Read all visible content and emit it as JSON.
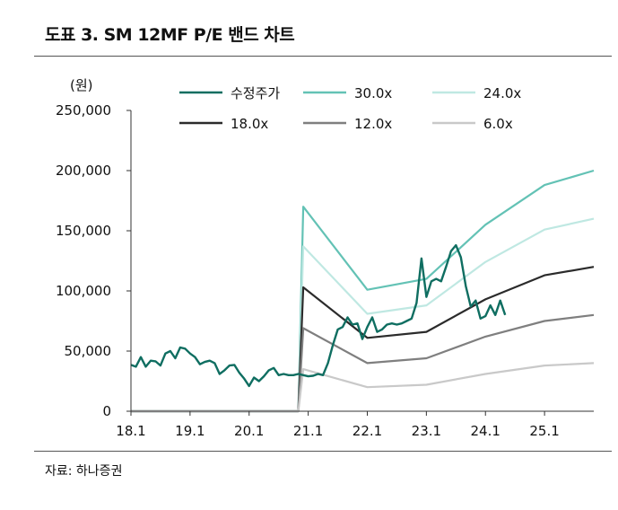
{
  "header": {
    "title": "도표 3. SM 12MF P/E 밴드 차트"
  },
  "footer": {
    "source": "자료: 하나증권"
  },
  "chart_data": {
    "type": "line",
    "title": "도표 3. SM 12MF P/E 밴드 차트",
    "ylabel": "(원)",
    "xlabel": "",
    "ylim": [
      0,
      250000
    ],
    "yticks": [
      0,
      50000,
      100000,
      150000,
      200000,
      250000
    ],
    "ytick_labels": [
      "0",
      "50,000",
      "100,000",
      "150,000",
      "200,000",
      "250,000"
    ],
    "xlim": [
      0,
      94
    ],
    "xticks": [
      0,
      12,
      24,
      36,
      48,
      60,
      72,
      84
    ],
    "xtick_labels": [
      "18.1",
      "19.1",
      "20.1",
      "21.1",
      "22.1",
      "23.1",
      "24.1",
      "25.1"
    ],
    "grid": false,
    "legend_position": "top",
    "series": [
      {
        "name": "수정주가",
        "color": "#0f6e61",
        "width": 2.4,
        "points": [
          [
            0,
            38500
          ],
          [
            1,
            37000
          ],
          [
            2,
            45000
          ],
          [
            3,
            37000
          ],
          [
            4,
            42000
          ],
          [
            5,
            41500
          ],
          [
            6,
            38000
          ],
          [
            7,
            48000
          ],
          [
            8,
            50000
          ],
          [
            9,
            44000
          ],
          [
            10,
            53000
          ],
          [
            11,
            52000
          ],
          [
            12,
            48000
          ],
          [
            13,
            45000
          ],
          [
            14,
            39000
          ],
          [
            15,
            41000
          ],
          [
            16,
            42000
          ],
          [
            17,
            40000
          ],
          [
            18,
            31000
          ],
          [
            19,
            34000
          ],
          [
            20,
            38000
          ],
          [
            21,
            38500
          ],
          [
            22,
            32000
          ],
          [
            23,
            27000
          ],
          [
            24,
            21000
          ],
          [
            25,
            28000
          ],
          [
            26,
            25000
          ],
          [
            27,
            29000
          ],
          [
            28,
            34000
          ],
          [
            29,
            36000
          ],
          [
            30,
            30000
          ],
          [
            31,
            31000
          ],
          [
            32,
            30000
          ],
          [
            33,
            30000
          ],
          [
            34,
            31000
          ],
          [
            35,
            30000
          ],
          [
            36,
            29000
          ],
          [
            37,
            29500
          ],
          [
            38,
            31000
          ],
          [
            39,
            30000
          ],
          [
            40,
            40000
          ],
          [
            41,
            55000
          ],
          [
            42,
            68000
          ],
          [
            43,
            70000
          ],
          [
            44,
            78000
          ],
          [
            45,
            72000
          ],
          [
            46,
            73000
          ],
          [
            47,
            60000
          ],
          [
            48,
            70000
          ],
          [
            49,
            78000
          ],
          [
            50,
            66000
          ],
          [
            51,
            68000
          ],
          [
            52,
            72000
          ],
          [
            53,
            73000
          ],
          [
            54,
            72000
          ],
          [
            55,
            73000
          ],
          [
            56,
            75000
          ],
          [
            57,
            77000
          ],
          [
            58,
            90000
          ],
          [
            59,
            127000
          ],
          [
            60,
            95000
          ],
          [
            61,
            108000
          ],
          [
            62,
            110000
          ],
          [
            63,
            108000
          ],
          [
            64,
            120000
          ],
          [
            65,
            133000
          ],
          [
            66,
            138000
          ],
          [
            67,
            128000
          ],
          [
            68,
            104000
          ],
          [
            69,
            87000
          ],
          [
            70,
            92000
          ],
          [
            71,
            77000
          ],
          [
            72,
            79000
          ],
          [
            73,
            88000
          ],
          [
            74,
            80000
          ],
          [
            75,
            92000
          ],
          [
            76,
            80000
          ]
        ]
      },
      {
        "name": "30.0x",
        "color": "#63c2b5",
        "width": 2.2,
        "points": [
          [
            0,
            0
          ],
          [
            34,
            0
          ],
          [
            35,
            170000
          ],
          [
            48,
            101000
          ],
          [
            60,
            110000
          ],
          [
            72,
            155000
          ],
          [
            84,
            188000
          ],
          [
            94,
            200000
          ]
        ]
      },
      {
        "name": "24.0x",
        "color": "#bfe8e2",
        "width": 2.2,
        "points": [
          [
            0,
            0
          ],
          [
            34,
            0
          ],
          [
            35,
            137000
          ],
          [
            48,
            81000
          ],
          [
            60,
            88000
          ],
          [
            72,
            124000
          ],
          [
            84,
            151000
          ],
          [
            94,
            160000
          ]
        ]
      },
      {
        "name": "18.0x",
        "color": "#2b2b2b",
        "width": 2.2,
        "points": [
          [
            0,
            0
          ],
          [
            34,
            0
          ],
          [
            35,
            103000
          ],
          [
            48,
            61000
          ],
          [
            60,
            66000
          ],
          [
            72,
            93000
          ],
          [
            84,
            113000
          ],
          [
            94,
            120000
          ]
        ]
      },
      {
        "name": "12.0x",
        "color": "#7f7f7f",
        "width": 2.2,
        "points": [
          [
            0,
            0
          ],
          [
            34,
            0
          ],
          [
            35,
            69000
          ],
          [
            48,
            40000
          ],
          [
            60,
            44000
          ],
          [
            72,
            62000
          ],
          [
            84,
            75000
          ],
          [
            94,
            80000
          ]
        ]
      },
      {
        "name": "6.0x",
        "color": "#c9c9c9",
        "width": 2.2,
        "points": [
          [
            0,
            0
          ],
          [
            34,
            0
          ],
          [
            35,
            35000
          ],
          [
            48,
            20000
          ],
          [
            60,
            22000
          ],
          [
            72,
            31000
          ],
          [
            84,
            38000
          ],
          [
            94,
            40000
          ]
        ]
      }
    ]
  }
}
